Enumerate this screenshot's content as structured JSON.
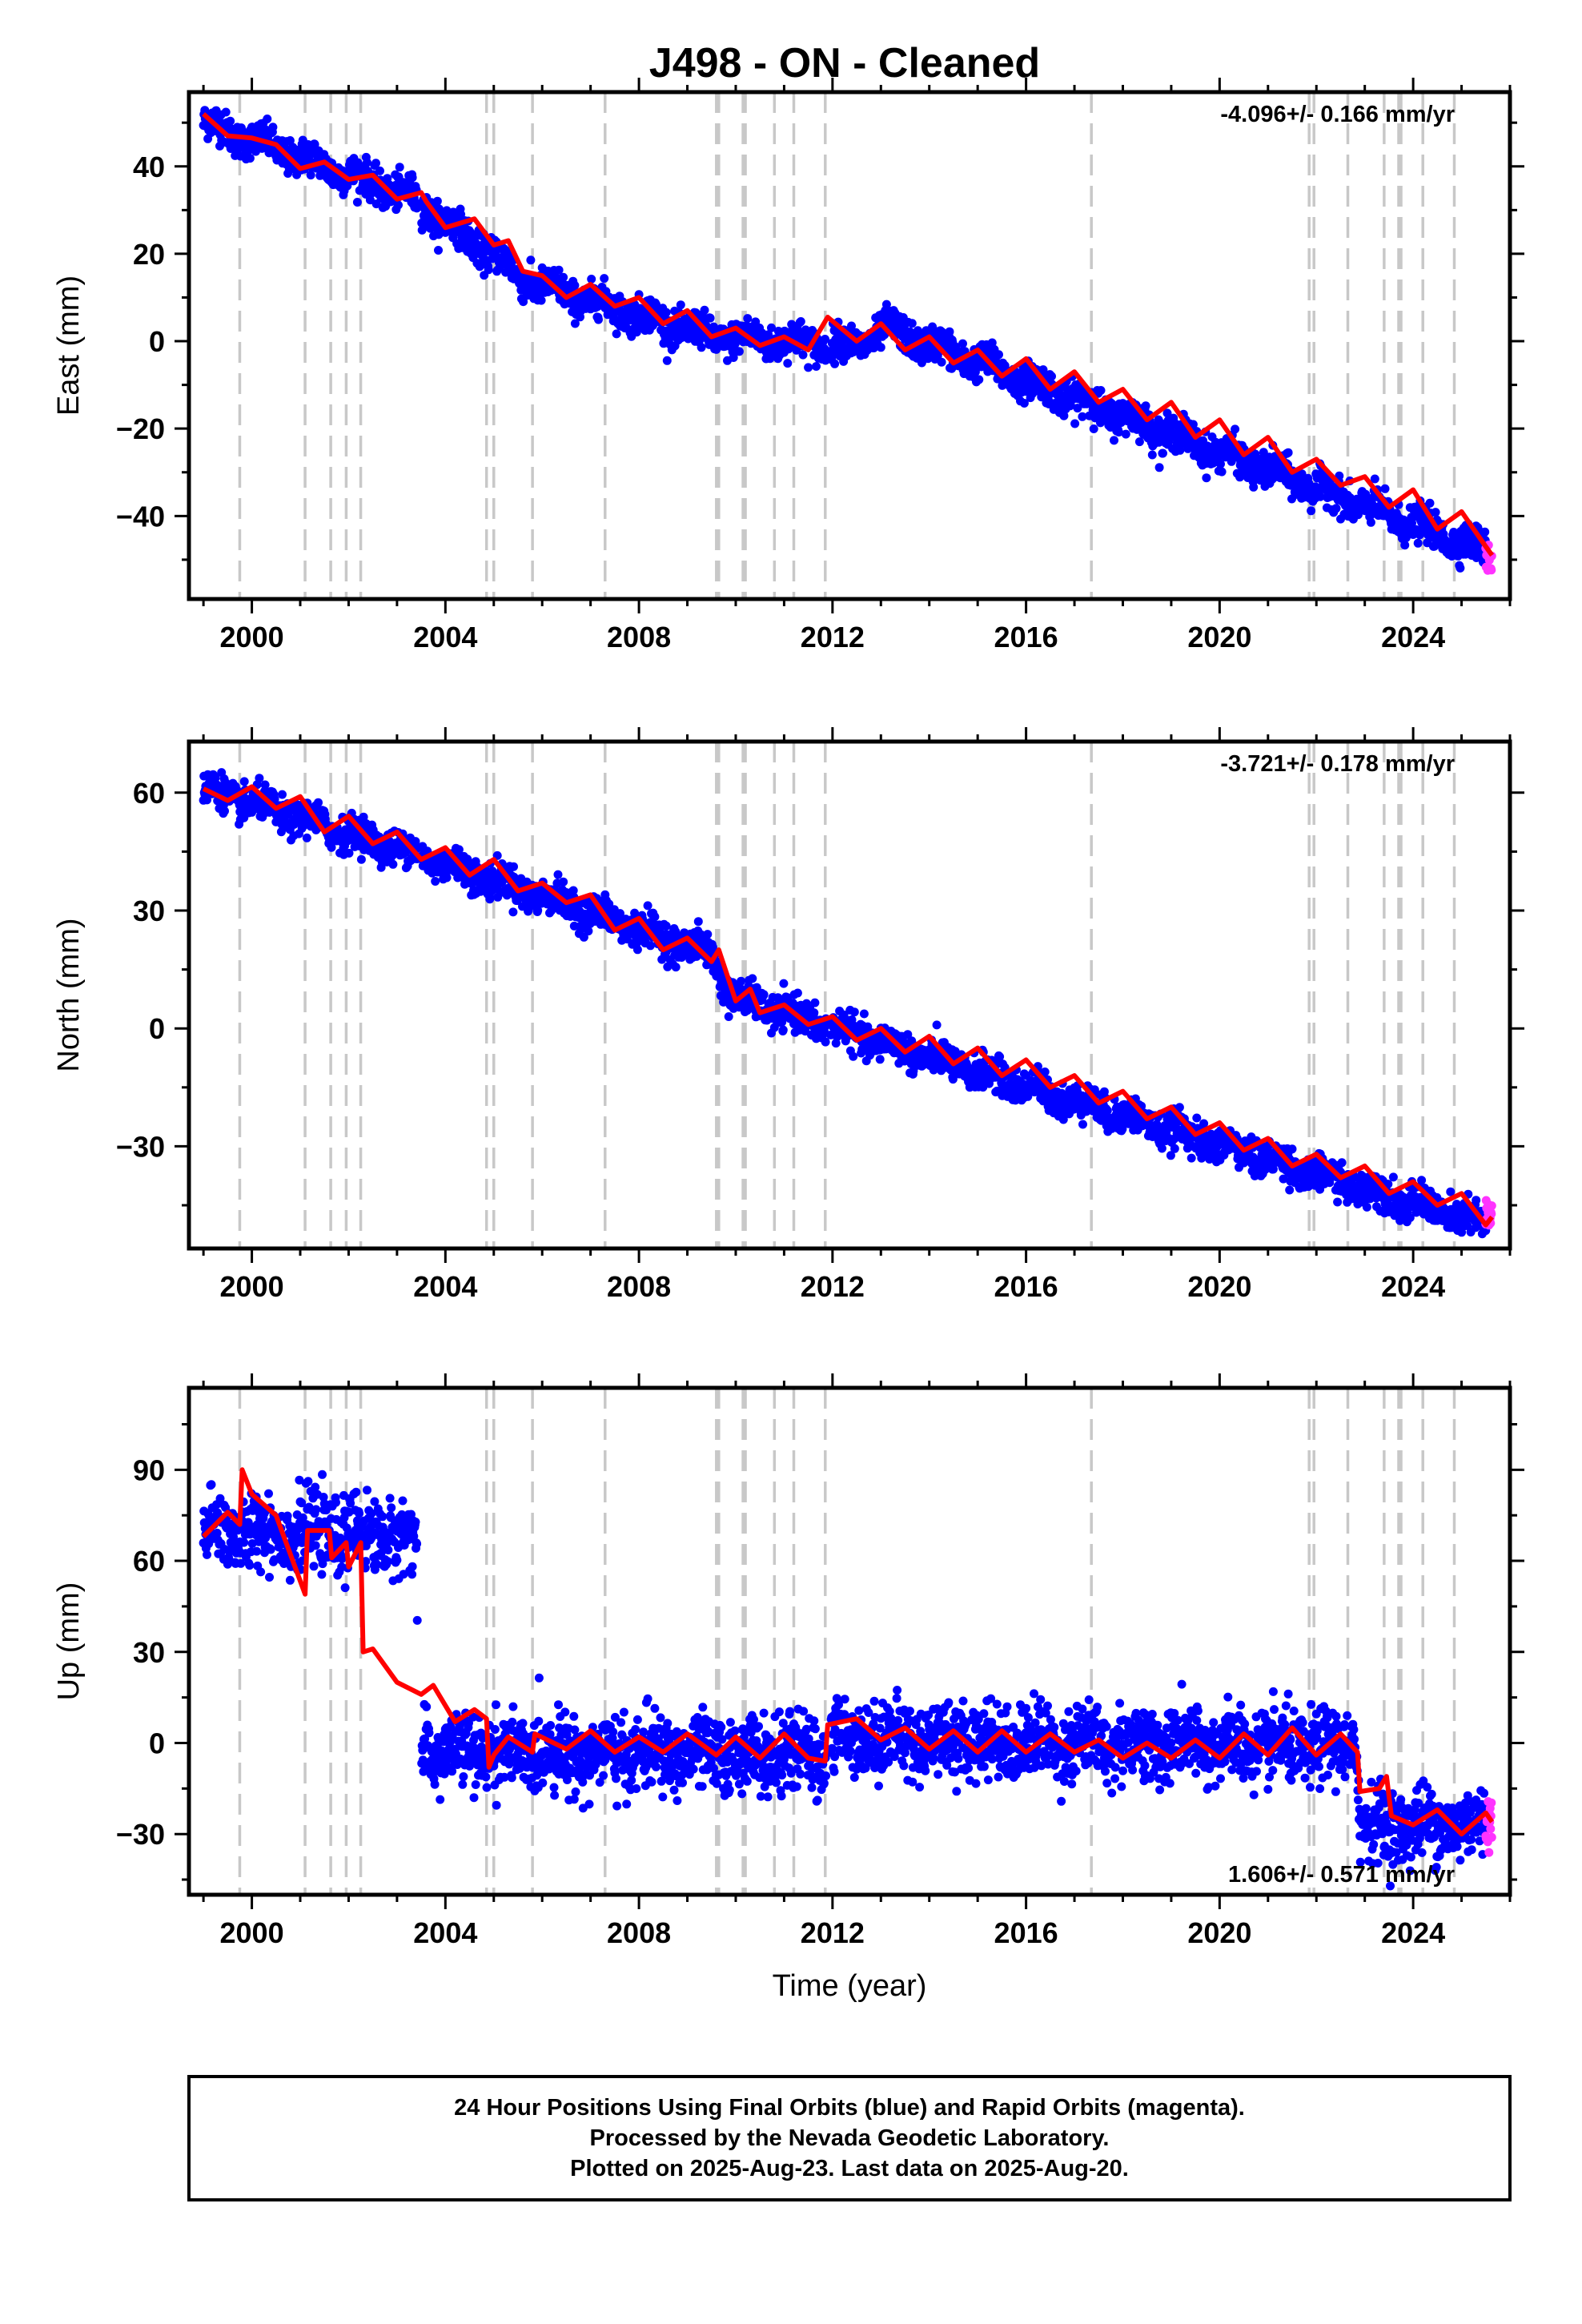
{
  "title": "J498  - ON - Cleaned",
  "footer": {
    "line1": "24 Hour Positions Using Final Orbits (blue) and Rapid Orbits (magenta).",
    "line2": "Processed by the Nevada Geodetic Laboratory.",
    "line3": "Plotted on 2025-Aug-23. Last data on 2025-Aug-20."
  },
  "colors": {
    "final_orbits": "#0000ff",
    "rapid_orbits": "#ff33ff",
    "model_fit": "#ff0000",
    "event_lines": "#c8c8c8"
  },
  "chart_data": [
    {
      "type": "scatter",
      "component": "East",
      "ylabel": "East (mm)",
      "xlabel": "",
      "rate_text": "-4.096+/- 0.166 mm/yr",
      "rate_position": "top-right",
      "xlim": [
        1998.7,
        2026.0
      ],
      "ylim": [
        -59,
        57
      ],
      "xticks": [
        2000,
        2004,
        2008,
        2012,
        2016,
        2020,
        2024
      ],
      "yticks": [
        -40,
        -20,
        0,
        20,
        40
      ],
      "grid": false,
      "series": [
        {
          "name": "Final Orbits (blue)",
          "trend": [
            [
              1999.0,
              50
            ],
            [
              2003.3,
              33
            ],
            [
              2004.4,
              24
            ],
            [
              2005.0,
              20
            ],
            [
              2005.6,
              14
            ],
            [
              2009.5,
              1
            ],
            [
              2012.5,
              -1
            ],
            [
              2013.1,
              3
            ],
            [
              2025.5,
              -48
            ]
          ],
          "spread": 2.3,
          "period_start": 1999.0,
          "period_end": 2025.5
        },
        {
          "name": "Rapid Orbits (magenta)",
          "trend": [
            [
              2025.5,
              -48
            ],
            [
              2025.63,
              -49
            ]
          ],
          "spread": 3.5,
          "period_start": 2025.5,
          "period_end": 2025.63
        }
      ],
      "model_fit": [
        [
          1999.0,
          52
        ],
        [
          1999.5,
          47
        ],
        [
          2000.0,
          46.5
        ],
        [
          2000.5,
          45
        ],
        [
          2001.0,
          39.5
        ],
        [
          2001.5,
          41
        ],
        [
          2002.0,
          37
        ],
        [
          2002.5,
          38
        ],
        [
          2003.0,
          32.5
        ],
        [
          2003.5,
          34
        ],
        [
          2003.6,
          32
        ],
        [
          2004.0,
          26
        ],
        [
          2004.6,
          28
        ],
        [
          2005.0,
          22
        ],
        [
          2005.3,
          23
        ],
        [
          2005.6,
          16
        ],
        [
          2006.0,
          15
        ],
        [
          2006.5,
          10
        ],
        [
          2007.0,
          13
        ],
        [
          2007.5,
          8
        ],
        [
          2008.0,
          10
        ],
        [
          2008.5,
          4
        ],
        [
          2009.0,
          7
        ],
        [
          2009.5,
          1
        ],
        [
          2010.0,
          3
        ],
        [
          2010.5,
          -1
        ],
        [
          2011.0,
          1
        ],
        [
          2011.5,
          -2
        ],
        [
          2011.9,
          5.5
        ],
        [
          2012.5,
          0
        ],
        [
          2013.0,
          4
        ],
        [
          2013.5,
          -2
        ],
        [
          2014.0,
          1
        ],
        [
          2014.5,
          -5
        ],
        [
          2015.0,
          -2
        ],
        [
          2015.5,
          -8
        ],
        [
          2016.0,
          -4
        ],
        [
          2016.5,
          -11
        ],
        [
          2017.0,
          -7
        ],
        [
          2017.5,
          -14
        ],
        [
          2018.0,
          -11
        ],
        [
          2018.5,
          -18
        ],
        [
          2019.0,
          -14
        ],
        [
          2019.5,
          -22
        ],
        [
          2020.0,
          -18
        ],
        [
          2020.5,
          -26
        ],
        [
          2021.0,
          -22
        ],
        [
          2021.5,
          -30
        ],
        [
          2022.0,
          -27
        ],
        [
          2022.5,
          -33
        ],
        [
          2023.0,
          -31
        ],
        [
          2023.5,
          -38
        ],
        [
          2024.0,
          -34
        ],
        [
          2024.5,
          -43
        ],
        [
          2025.0,
          -39
        ],
        [
          2025.5,
          -47
        ],
        [
          2025.63,
          -49
        ]
      ],
      "event_lines": [
        1999.75,
        2001.1,
        2001.63,
        2001.95,
        2002.25,
        2004.85,
        2005.0,
        2005.8,
        2007.3,
        2009.6,
        2009.65,
        2010.15,
        2010.2,
        2010.8,
        2011.2,
        2011.85,
        2017.35,
        2021.85,
        2021.95,
        2022.65,
        2023.4,
        2023.7,
        2023.75,
        2024.2,
        2024.85
      ]
    },
    {
      "type": "scatter",
      "component": "North",
      "ylabel": "North (mm)",
      "xlabel": "",
      "rate_text": "-3.721+/- 0.178 mm/yr",
      "rate_position": "top-right",
      "xlim": [
        1998.7,
        2026.0
      ],
      "ylim": [
        -56,
        73
      ],
      "xticks": [
        2000,
        2004,
        2008,
        2012,
        2016,
        2020,
        2024
      ],
      "yticks": [
        -30,
        0,
        30,
        60
      ],
      "grid": false,
      "series": [
        {
          "name": "Final Orbits (blue)",
          "trend": [
            [
              1999.0,
              61
            ],
            [
              2003.0,
              46
            ],
            [
              2009.5,
              19
            ],
            [
              2009.9,
              8
            ],
            [
              2025.5,
              -50
            ]
          ],
          "spread": 2.5,
          "period_start": 1999.0,
          "period_end": 2025.5
        },
        {
          "name": "Rapid Orbits (magenta)",
          "trend": [
            [
              2025.5,
              -48
            ],
            [
              2025.63,
              -47
            ]
          ],
          "spread": 3,
          "period_start": 2025.5,
          "period_end": 2025.63
        }
      ],
      "model_fit": [
        [
          1999.0,
          61
        ],
        [
          1999.5,
          58
        ],
        [
          2000.0,
          61.5
        ],
        [
          2000.5,
          56
        ],
        [
          2001.0,
          59
        ],
        [
          2001.5,
          50
        ],
        [
          2002.0,
          54
        ],
        [
          2002.5,
          47
        ],
        [
          2003.0,
          50
        ],
        [
          2003.5,
          43
        ],
        [
          2004.0,
          46
        ],
        [
          2004.5,
          39
        ],
        [
          2005.0,
          43
        ],
        [
          2005.5,
          35
        ],
        [
          2006.0,
          37
        ],
        [
          2006.5,
          32
        ],
        [
          2007.0,
          34
        ],
        [
          2007.5,
          25
        ],
        [
          2008.0,
          28
        ],
        [
          2008.5,
          20
        ],
        [
          2009.0,
          23
        ],
        [
          2009.5,
          17
        ],
        [
          2009.65,
          20
        ],
        [
          2010.0,
          7
        ],
        [
          2010.3,
          10
        ],
        [
          2010.5,
          4
        ],
        [
          2011.0,
          6
        ],
        [
          2011.5,
          1
        ],
        [
          2012.0,
          3
        ],
        [
          2012.5,
          -3
        ],
        [
          2013.0,
          0
        ],
        [
          2013.5,
          -6
        ],
        [
          2014.0,
          -2
        ],
        [
          2014.5,
          -9
        ],
        [
          2015.0,
          -5
        ],
        [
          2015.5,
          -12
        ],
        [
          2016.0,
          -8
        ],
        [
          2016.5,
          -15
        ],
        [
          2017.0,
          -12
        ],
        [
          2017.5,
          -19
        ],
        [
          2018.0,
          -16
        ],
        [
          2018.5,
          -23
        ],
        [
          2019.0,
          -20
        ],
        [
          2019.5,
          -27
        ],
        [
          2020.0,
          -24
        ],
        [
          2020.5,
          -31
        ],
        [
          2021.0,
          -28
        ],
        [
          2021.5,
          -35
        ],
        [
          2022.0,
          -32
        ],
        [
          2022.5,
          -38
        ],
        [
          2023.0,
          -35
        ],
        [
          2023.5,
          -42
        ],
        [
          2024.0,
          -39
        ],
        [
          2024.5,
          -45
        ],
        [
          2025.0,
          -42
        ],
        [
          2025.5,
          -50
        ],
        [
          2025.63,
          -48
        ]
      ],
      "event_lines": [
        1999.75,
        2001.1,
        2001.63,
        2001.95,
        2002.25,
        2004.85,
        2005.0,
        2005.8,
        2007.3,
        2009.6,
        2009.65,
        2010.15,
        2010.2,
        2010.8,
        2011.2,
        2011.85,
        2017.35,
        2021.85,
        2021.95,
        2022.65,
        2023.4,
        2023.7,
        2023.75,
        2024.2,
        2024.85
      ]
    },
    {
      "type": "scatter",
      "component": "Up",
      "ylabel": "Up (mm)",
      "xlabel": "Time (year)",
      "rate_text": "1.606+/- 0.571 mm/yr",
      "rate_position": "bottom-right",
      "xlim": [
        1998.7,
        2026.0
      ],
      "ylim": [
        -50,
        117
      ],
      "xticks": [
        2000,
        2004,
        2008,
        2012,
        2016,
        2020,
        2024
      ],
      "yticks": [
        -30,
        0,
        30,
        60,
        90
      ],
      "grid": false,
      "series": [
        {
          "name": "Final Orbits (blue)",
          "trend": [
            [
              1999.0,
              70
            ],
            [
              2003.4,
              68
            ],
            [
              2003.45,
              -3
            ],
            [
              2011.9,
              -4
            ],
            [
              2011.95,
              2
            ],
            [
              2022.85,
              -2
            ],
            [
              2022.9,
              -27
            ],
            [
              2025.5,
              -27
            ]
          ],
          "spread": 7,
          "period_start": 1999.0,
          "period_end": 2025.5
        },
        {
          "name": "Rapid Orbits (magenta)",
          "trend": [
            [
              2025.5,
              -25
            ],
            [
              2025.63,
              -25
            ]
          ],
          "spread": 6,
          "period_start": 2025.5,
          "period_end": 2025.63
        }
      ],
      "model_fit": [
        [
          1999.0,
          68
        ],
        [
          1999.5,
          76
        ],
        [
          1999.75,
          72
        ],
        [
          1999.8,
          90
        ],
        [
          2000.0,
          82
        ],
        [
          2000.5,
          75
        ],
        [
          2001.1,
          49
        ],
        [
          2001.15,
          70
        ],
        [
          2001.6,
          70
        ],
        [
          2001.65,
          61
        ],
        [
          2001.95,
          66
        ],
        [
          2002.0,
          58
        ],
        [
          2002.25,
          66
        ],
        [
          2002.3,
          30
        ],
        [
          2002.5,
          31
        ],
        [
          2003.0,
          20
        ],
        [
          2003.5,
          16
        ],
        [
          2003.75,
          19
        ],
        [
          2004.2,
          7
        ],
        [
          2004.6,
          11
        ],
        [
          2004.85,
          8
        ],
        [
          2004.9,
          -8
        ],
        [
          2005.0,
          -4
        ],
        [
          2005.3,
          2
        ],
        [
          2005.8,
          -3
        ],
        [
          2005.85,
          3
        ],
        [
          2006.5,
          -2
        ],
        [
          2007.0,
          4
        ],
        [
          2007.5,
          -3
        ],
        [
          2008.0,
          2
        ],
        [
          2008.5,
          -3
        ],
        [
          2009.0,
          3
        ],
        [
          2009.6,
          -4
        ],
        [
          2010.0,
          2
        ],
        [
          2010.5,
          -5
        ],
        [
          2011.0,
          3
        ],
        [
          2011.5,
          -5
        ],
        [
          2011.85,
          -6
        ],
        [
          2011.9,
          6
        ],
        [
          2012.5,
          8
        ],
        [
          2013.0,
          1
        ],
        [
          2013.5,
          5
        ],
        [
          2014.0,
          -2
        ],
        [
          2014.5,
          4
        ],
        [
          2015.0,
          -3
        ],
        [
          2015.5,
          4
        ],
        [
          2016.0,
          -3
        ],
        [
          2016.5,
          3
        ],
        [
          2017.0,
          -3
        ],
        [
          2017.5,
          1
        ],
        [
          2018.0,
          -5
        ],
        [
          2018.5,
          0
        ],
        [
          2019.0,
          -5
        ],
        [
          2019.5,
          1
        ],
        [
          2020.0,
          -5
        ],
        [
          2020.5,
          3
        ],
        [
          2021.0,
          -4
        ],
        [
          2021.5,
          5
        ],
        [
          2022.0,
          -4
        ],
        [
          2022.5,
          3
        ],
        [
          2022.85,
          -3
        ],
        [
          2022.9,
          -16
        ],
        [
          2023.3,
          -15
        ],
        [
          2023.45,
          -11
        ],
        [
          2023.55,
          -24
        ],
        [
          2024.0,
          -27
        ],
        [
          2024.5,
          -22
        ],
        [
          2025.0,
          -30
        ],
        [
          2025.5,
          -23
        ],
        [
          2025.63,
          -26
        ]
      ],
      "event_lines": [
        1999.75,
        2001.1,
        2001.63,
        2001.95,
        2002.25,
        2004.85,
        2005.0,
        2005.8,
        2007.3,
        2009.6,
        2009.65,
        2010.15,
        2010.2,
        2010.8,
        2011.2,
        2011.85,
        2017.35,
        2021.85,
        2021.95,
        2022.65,
        2023.4,
        2023.7,
        2023.75,
        2024.2,
        2024.85
      ]
    }
  ]
}
